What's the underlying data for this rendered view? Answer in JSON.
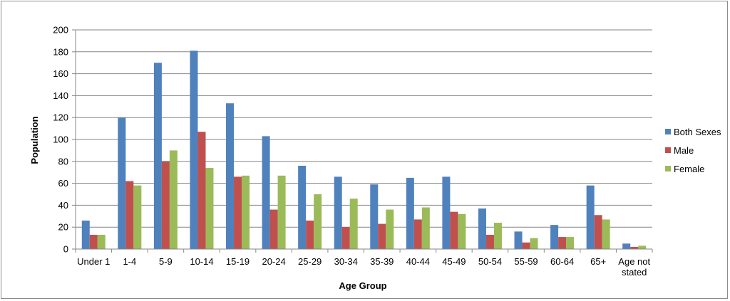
{
  "chart_data": {
    "type": "bar",
    "title": "",
    "xlabel": "Age Group",
    "ylabel": "Population",
    "ylim": [
      0,
      200
    ],
    "yticks": [
      0,
      20,
      40,
      60,
      80,
      100,
      120,
      140,
      160,
      180,
      200
    ],
    "grid": true,
    "legend_position": "right",
    "categories": [
      "Under 1",
      "1-4",
      "5-9",
      "10-14",
      "15-19",
      "20-24",
      "25-29",
      "30-34",
      "35-39",
      "40-44",
      "45-49",
      "50-54",
      "55-59",
      "60-64",
      "65+",
      "Age not stated"
    ],
    "category_label_lines": [
      [
        "Under 1"
      ],
      [
        "1-4"
      ],
      [
        "5-9"
      ],
      [
        "10-14"
      ],
      [
        "15-19"
      ],
      [
        "20-24"
      ],
      [
        "25-29"
      ],
      [
        "30-34"
      ],
      [
        "35-39"
      ],
      [
        "40-44"
      ],
      [
        "45-49"
      ],
      [
        "50-54"
      ],
      [
        "55-59"
      ],
      [
        "60-64"
      ],
      [
        "65+"
      ],
      [
        "Age not",
        "stated"
      ]
    ],
    "series": [
      {
        "name": "Both Sexes",
        "color": "#4f81bd",
        "values": [
          26,
          120,
          170,
          181,
          133,
          103,
          76,
          66,
          59,
          65,
          66,
          37,
          16,
          22,
          58,
          5
        ]
      },
      {
        "name": "Male",
        "color": "#c0504d",
        "values": [
          13,
          62,
          80,
          107,
          66,
          36,
          26,
          20,
          23,
          27,
          34,
          13,
          6,
          11,
          31,
          2
        ]
      },
      {
        "name": "Female",
        "color": "#9bbb59",
        "values": [
          13,
          58,
          90,
          74,
          67,
          67,
          50,
          46,
          36,
          38,
          32,
          24,
          10,
          11,
          27,
          3
        ]
      }
    ]
  }
}
